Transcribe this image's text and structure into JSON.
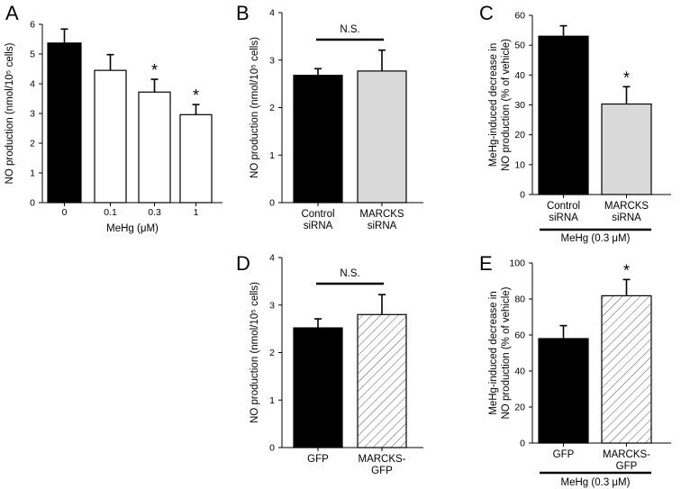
{
  "colors": {
    "black_bar": "#000000",
    "white_bar": "#ffffff",
    "gray_bar": "#d9d9d9",
    "axis": "#000000"
  },
  "chart_data": [
    {
      "panel": "A",
      "type": "bar",
      "ylabel": "NO production (nmol/10⁵ cells)",
      "xlabel": "MeHg (μM)",
      "ylim": [
        0,
        6
      ],
      "yticks": [
        0,
        1,
        2,
        3,
        4,
        5,
        6
      ],
      "categories": [
        "0",
        "0.1",
        "0.3",
        "1"
      ],
      "values": [
        5.37,
        4.45,
        3.72,
        2.96
      ],
      "errors": [
        0.47,
        0.53,
        0.43,
        0.34
      ],
      "fills": [
        "black",
        "white",
        "white",
        "white"
      ],
      "significance": [
        "",
        "",
        "*",
        "*"
      ],
      "grid": false
    },
    {
      "panel": "B",
      "type": "bar",
      "ylabel": "NO production (nmol/10⁵ cells)",
      "ylim": [
        0,
        4
      ],
      "yticks": [
        0,
        1,
        2,
        3,
        4
      ],
      "categories": [
        [
          "Control",
          "siRNA"
        ],
        [
          "MARCKS",
          "siRNA"
        ]
      ],
      "values": [
        2.68,
        2.77
      ],
      "errors": [
        0.14,
        0.44
      ],
      "fills": [
        "black",
        "gray"
      ],
      "comparison": "N.S.",
      "grid": false
    },
    {
      "panel": "C",
      "type": "bar",
      "ylabel": [
        "MeHg-induced decrease in",
        "NO production (% of vehicle)"
      ],
      "ylim": [
        0,
        60
      ],
      "yticks": [
        0,
        10,
        20,
        30,
        40,
        50,
        60
      ],
      "categories": [
        [
          "Control",
          "siRNA"
        ],
        [
          "MARCKS",
          "siRNA"
        ]
      ],
      "values": [
        53.0,
        30.3
      ],
      "errors": [
        3.5,
        5.8
      ],
      "fills": [
        "black",
        "gray"
      ],
      "significance": [
        "",
        "*"
      ],
      "group_label": "MeHg (0.3 μM)",
      "grid": false
    },
    {
      "panel": "D",
      "type": "bar",
      "ylabel": "NO production (nmol/10⁵ cells)",
      "ylim": [
        0,
        4
      ],
      "yticks": [
        0,
        1,
        2,
        3,
        4
      ],
      "categories": [
        [
          "GFP"
        ],
        [
          "MARCKS-",
          "GFP"
        ]
      ],
      "values": [
        2.52,
        2.8
      ],
      "errors": [
        0.19,
        0.42
      ],
      "fills": [
        "black",
        "hatch"
      ],
      "comparison": "N.S.",
      "grid": false
    },
    {
      "panel": "E",
      "type": "bar",
      "ylabel": [
        "MeHg-induced decrease in",
        "NO production (% of vehicle)"
      ],
      "ylim": [
        0,
        100
      ],
      "yticks": [
        0,
        20,
        40,
        60,
        80,
        100
      ],
      "categories": [
        [
          "GFP"
        ],
        [
          "MARCKS-",
          "GFP"
        ]
      ],
      "values": [
        58.0,
        81.8
      ],
      "errors": [
        7.2,
        9.0
      ],
      "fills": [
        "black",
        "hatch"
      ],
      "significance": [
        "",
        "*"
      ],
      "group_label": "MeHg (0.3 μM)",
      "grid": false
    }
  ]
}
